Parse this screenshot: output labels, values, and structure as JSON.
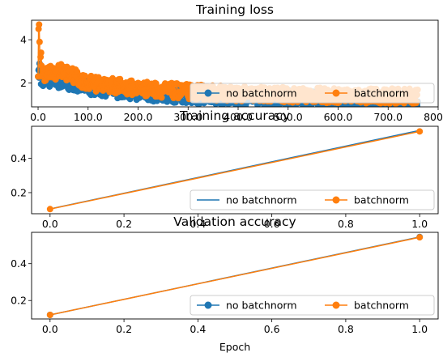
{
  "colors": {
    "no_batchnorm": "#1f77b4",
    "batchnorm": "#ff7f0e"
  },
  "chart_data": [
    {
      "type": "line",
      "title": "Training loss",
      "xlabel": "",
      "ylabel": "",
      "xlim": [
        -13,
        800
      ],
      "ylim": [
        0.9,
        4.9
      ],
      "xticks": [
        0,
        100,
        200,
        300,
        400,
        500,
        600,
        700,
        800
      ],
      "yticks": [
        2,
        4
      ],
      "legend": "lower-right",
      "grid": false,
      "series": [
        {
          "name": "no batchnorm",
          "marker": "circle",
          "line": true,
          "start": [
            2.3,
            2.6,
            2.25,
            2.9,
            2.7,
            2.4
          ],
          "trend": [
            [
              0,
              2.3
            ],
            [
              50,
              2.1
            ],
            [
              100,
              1.85
            ],
            [
              200,
              1.6
            ],
            [
              300,
              1.45
            ],
            [
              400,
              1.35
            ],
            [
              500,
              1.3
            ],
            [
              600,
              1.22
            ],
            [
              700,
              1.18
            ],
            [
              760,
              1.17
            ]
          ],
          "noise": 0.4,
          "n": 760
        },
        {
          "name": "batchnorm",
          "marker": "circle",
          "line": true,
          "start": [
            2.3,
            4.5,
            4.7,
            3.9,
            2.3,
            3.2,
            3.4,
            2.8
          ],
          "trend": [
            [
              0,
              2.4
            ],
            [
              50,
              2.55
            ],
            [
              100,
              2.0
            ],
            [
              200,
              1.75
            ],
            [
              300,
              1.6
            ],
            [
              400,
              1.5
            ],
            [
              500,
              1.45
            ],
            [
              600,
              1.42
            ],
            [
              700,
              1.4
            ],
            [
              760,
              1.38
            ]
          ],
          "noise": 0.35,
          "n": 760
        }
      ]
    },
    {
      "type": "line",
      "title": "Training accuracy",
      "xlabel": "",
      "ylabel": "",
      "xlim": [
        -0.05,
        1.05
      ],
      "ylim": [
        0.077,
        0.587
      ],
      "xticks": [
        0.0,
        0.2,
        0.4,
        0.6,
        0.8,
        1.0
      ],
      "yticks": [
        0.2,
        0.4
      ],
      "legend": "lower-right",
      "grid": false,
      "series": [
        {
          "name": "no batchnorm",
          "marker": "none",
          "line": true,
          "x": [
            0,
            1
          ],
          "y": [
            0.105,
            0.563
          ]
        },
        {
          "name": "batchnorm",
          "marker": "circle",
          "line": true,
          "x": [
            0,
            1
          ],
          "y": [
            0.104,
            0.557
          ]
        }
      ]
    },
    {
      "type": "line",
      "title": "Validation accuracy",
      "xlabel": "Epoch",
      "ylabel": "",
      "xlim": [
        -0.05,
        1.05
      ],
      "ylim": [
        0.1,
        0.57
      ],
      "xticks": [
        0.0,
        0.2,
        0.4,
        0.6,
        0.8,
        1.0
      ],
      "yticks": [
        0.2,
        0.4
      ],
      "legend": "lower-right",
      "grid": false,
      "series": [
        {
          "name": "no batchnorm",
          "marker": "circle",
          "line": true,
          "x": [
            0,
            1
          ],
          "y": [
            0.122,
            0.545
          ]
        },
        {
          "name": "batchnorm",
          "marker": "circle",
          "line": true,
          "x": [
            0,
            1
          ],
          "y": [
            0.122,
            0.543
          ]
        }
      ]
    }
  ]
}
